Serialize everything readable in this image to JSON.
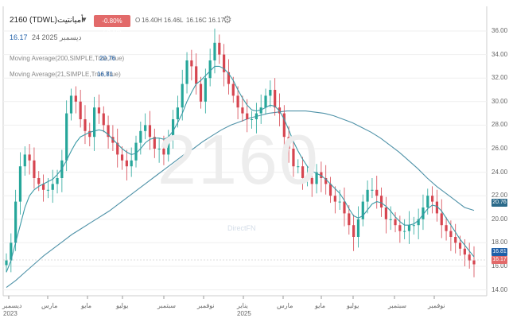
{
  "header": {
    "ticker": "2160 (TDWL)",
    "name": "أميانتيت",
    "dropdown_icon": "caret-down-icon",
    "change": "-0.80%(-0.13)",
    "open_label": "O",
    "open": "16.40",
    "high_label": "H",
    "high": "16.46",
    "low_label": "L",
    "low": "16.16",
    "close_label": "C",
    "close": "16.17",
    "settings_icon": "gear-icon",
    "last_price": "16.17",
    "date": "24 2025 ديسمبر"
  },
  "indicators": {
    "ma200_label": "Moving Average(200,SIMPLE,True,True)",
    "ma200_value": "20.76",
    "ma21_label": "Moving Average(21,SIMPLE,True,True)",
    "ma21_value": "16.81"
  },
  "watermark": {
    "symbol": "2160",
    "brand": "DirectFN"
  },
  "price_pills": {
    "ma200": "20.76",
    "ma21": "16.81",
    "last": "16.17"
  },
  "colors": {
    "up": "#26a69a",
    "down": "#d64550",
    "ma21": "#3b9aa6",
    "ma200": "#4f92a8",
    "badge": "#e26a6a"
  },
  "chart_data": {
    "type": "candlestick",
    "y_ticks": [
      "36.00",
      "34.00",
      "32.00",
      "30.00",
      "28.00",
      "26.00",
      "24.00",
      "22.00",
      "20.00",
      "18.00",
      "16.00",
      "14.00"
    ],
    "x_ticks": [
      "ديسمبر",
      "مارس",
      "مايو",
      "يوليو",
      "سبتمبر",
      "نوفمبر",
      "يناير",
      "مارس",
      "مايو",
      "يوليو",
      "سبتمبر",
      "نوفمبر"
    ],
    "years": [
      "2023",
      "2025"
    ],
    "ylim": [
      14,
      36
    ],
    "series": [
      {
        "name": "close",
        "values": [
          16.5,
          18,
          21.5,
          24.5,
          25.5,
          25,
          23.5,
          23,
          22.5,
          22.5,
          23,
          23.5,
          25,
          29,
          30.5,
          30,
          28.5,
          27.5,
          27,
          29.5,
          29,
          28,
          27,
          26.5,
          25.5,
          25,
          24.5,
          25,
          26.5,
          27.5,
          28,
          27,
          26,
          26,
          25.5,
          27,
          28.5,
          29.5,
          31.5,
          33.5,
          33,
          31.5,
          30,
          32,
          33.5,
          35,
          34,
          32.5,
          31.5,
          30.5,
          29.5,
          29,
          28.5,
          28.5,
          29,
          29.5,
          30.5,
          31,
          29.5,
          29,
          27,
          26,
          24.5,
          24.5,
          23.5,
          23.5,
          23,
          24,
          23.5,
          23,
          22,
          21.5,
          21.5,
          20.5,
          19.5,
          18.5,
          20,
          21.5,
          22.5,
          22.5,
          22,
          21,
          20,
          20,
          19.5,
          19,
          19,
          19.5,
          19.5,
          20,
          21,
          22,
          21.5,
          20.5,
          19.5,
          19,
          18.5,
          18,
          17.5,
          17,
          16.5,
          16.17
        ]
      },
      {
        "name": "Moving Average(21,SIMPLE,True,True)",
        "values": [
          15.5,
          16.5,
          18,
          19.5,
          21,
          22,
          22.5,
          22.8,
          23,
          23.2,
          23.4,
          23.8,
          24.3,
          25,
          25.8,
          26.5,
          27,
          27.2,
          27.4,
          27.5,
          27.6,
          27.5,
          27.2,
          26.8,
          26.4,
          26,
          25.7,
          25.5,
          25.6,
          26,
          26.5,
          26.8,
          26.9,
          26.9,
          26.8,
          27,
          27.5,
          28.2,
          29,
          30,
          30.8,
          31.5,
          31.8,
          32.2,
          32.6,
          33,
          33,
          32.8,
          32.4,
          31.8,
          31,
          30.3,
          29.7,
          29.3,
          29.2,
          29.3,
          29.5,
          29.7,
          29.6,
          29.2,
          28.5,
          27.6,
          26.6,
          25.8,
          25.1,
          24.5,
          24.1,
          23.9,
          23.7,
          23.4,
          23,
          22.6,
          22.2,
          21.6,
          20.9,
          20.3,
          20.1,
          20.3,
          20.8,
          21.3,
          21.5,
          21.4,
          21.1,
          20.7,
          20.2,
          19.8,
          19.5,
          19.5,
          19.6,
          19.9,
          20.4,
          20.9,
          21.2,
          21.1,
          20.7,
          20.1,
          19.5,
          18.9,
          18.3,
          17.8,
          17.3,
          16.81
        ]
      },
      {
        "name": "Moving Average(200,SIMPLE,True,True)",
        "values": [
          14.2,
          14.8,
          15.5,
          16.2,
          16.9,
          17.5,
          18.1,
          18.7,
          19.2,
          19.7,
          20.2,
          20.7,
          21.3,
          21.9,
          22.5,
          23.1,
          23.7,
          24.3,
          24.9,
          25.5,
          26,
          26.6,
          27.1,
          27.6,
          28,
          28.3,
          28.6,
          28.8,
          29,
          29.1,
          29.2,
          29.2,
          29.2,
          29.1,
          29,
          28.8,
          28.5,
          28.2,
          27.8,
          27.4,
          26.9,
          26.3,
          25.7,
          25,
          24.3,
          23.5,
          22.8,
          22.2,
          21.6,
          21,
          20.76
        ]
      }
    ]
  }
}
